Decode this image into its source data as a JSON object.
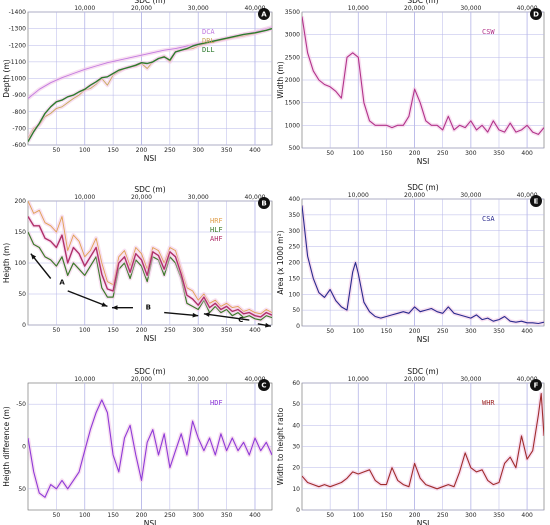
{
  "chart_data": [
    {
      "id": "A",
      "type": "line",
      "xlabel": "NSI",
      "ylabel": "Depth (m)",
      "x2label": "SDC (m)",
      "xlim": [
        0,
        430
      ],
      "ylim": [
        -1400,
        -600
      ],
      "y_step": 100,
      "y_reversed": true,
      "x2_ticks": [
        10000,
        20000,
        30000,
        40000
      ],
      "x2_tick_labels": [
        "10,000",
        "20,000",
        "30,000",
        "40,000"
      ],
      "series": [
        {
          "name": "DCA",
          "color": "#c27ae0",
          "width": 0.9,
          "x": [
            0,
            20,
            40,
            60,
            80,
            100,
            120,
            140,
            160,
            180,
            200,
            220,
            240,
            260,
            280,
            300,
            320,
            340,
            360,
            380,
            400,
            420,
            430
          ],
          "y": [
            -880,
            -935,
            -975,
            -1005,
            -1030,
            -1055,
            -1075,
            -1095,
            -1110,
            -1125,
            -1140,
            -1155,
            -1170,
            -1180,
            -1195,
            -1210,
            -1220,
            -1235,
            -1250,
            -1265,
            -1280,
            -1300,
            -1310
          ]
        },
        {
          "name": "DRL",
          "color": "#c8aa5a",
          "width": 0.9,
          "x": [
            0,
            10,
            20,
            30,
            40,
            50,
            60,
            70,
            80,
            90,
            100,
            110,
            120,
            130,
            140,
            150,
            160,
            170,
            180,
            190,
            200,
            210,
            220,
            230,
            240,
            250,
            260,
            270,
            280,
            290,
            300,
            320,
            340,
            360,
            380,
            400,
            420,
            430
          ],
          "y": [
            -640,
            -700,
            -720,
            -770,
            -790,
            -820,
            -830,
            -855,
            -880,
            -900,
            -930,
            -940,
            -965,
            -1000,
            -960,
            -1020,
            -1040,
            -1060,
            -1070,
            -1075,
            -1090,
            -1060,
            -1100,
            -1120,
            -1135,
            -1100,
            -1160,
            -1170,
            -1175,
            -1180,
            -1195,
            -1215,
            -1230,
            -1245,
            -1255,
            -1270,
            -1290,
            -1300
          ]
        },
        {
          "name": "DLL",
          "color": "#2d7a2d",
          "width": 1.4,
          "x": [
            0,
            10,
            20,
            30,
            40,
            50,
            60,
            70,
            80,
            90,
            100,
            110,
            120,
            130,
            140,
            150,
            160,
            170,
            180,
            190,
            200,
            210,
            220,
            230,
            240,
            250,
            260,
            270,
            280,
            290,
            300,
            320,
            340,
            360,
            380,
            400,
            420,
            430
          ],
          "y": [
            -620,
            -680,
            -730,
            -790,
            -830,
            -860,
            -870,
            -890,
            -900,
            -920,
            -935,
            -960,
            -980,
            -1005,
            -1010,
            -1030,
            -1050,
            -1060,
            -1070,
            -1080,
            -1095,
            -1090,
            -1100,
            -1120,
            -1130,
            -1110,
            -1160,
            -1170,
            -1180,
            -1195,
            -1205,
            -1220,
            -1235,
            -1250,
            -1265,
            -1275,
            -1290,
            -1300
          ]
        }
      ]
    },
    {
      "id": "B",
      "type": "line",
      "xlabel": "NSI",
      "ylabel": "Heigth (m)",
      "x2label": "SDC (m)",
      "xlim": [
        0,
        430
      ],
      "ylim": [
        0,
        200
      ],
      "y_step": 50,
      "y_reversed": false,
      "x2_ticks": [
        10000,
        20000,
        30000,
        40000
      ],
      "x2_tick_labels": [
        "10,000",
        "20,000",
        "30,000",
        "40,000"
      ],
      "series": [
        {
          "name": "HRF",
          "color": "#e0a050",
          "width": 0.9,
          "x": [
            0,
            10,
            20,
            30,
            40,
            50,
            60,
            70,
            80,
            90,
            100,
            110,
            120,
            130,
            140,
            150,
            160,
            170,
            180,
            190,
            200,
            210,
            220,
            230,
            240,
            250,
            260,
            270,
            280,
            290,
            300,
            310,
            320,
            330,
            340,
            350,
            360,
            370,
            380,
            390,
            400,
            410,
            420,
            430
          ],
          "y": [
            200,
            180,
            185,
            165,
            160,
            150,
            175,
            120,
            145,
            135,
            110,
            120,
            140,
            100,
            70,
            65,
            110,
            120,
            95,
            125,
            115,
            90,
            125,
            120,
            100,
            125,
            120,
            90,
            60,
            55,
            40,
            50,
            35,
            40,
            30,
            35,
            28,
            30,
            22,
            25,
            20,
            18,
            25,
            20
          ]
        },
        {
          "name": "HLF",
          "color": "#3c7a2a",
          "width": 1.2,
          "x": [
            0,
            10,
            20,
            30,
            40,
            50,
            60,
            70,
            80,
            90,
            100,
            110,
            120,
            130,
            140,
            150,
            160,
            170,
            180,
            190,
            200,
            210,
            220,
            230,
            240,
            250,
            260,
            270,
            280,
            290,
            300,
            310,
            320,
            330,
            340,
            350,
            360,
            370,
            380,
            390,
            400,
            410,
            420,
            430
          ],
          "y": [
            150,
            130,
            125,
            110,
            105,
            95,
            110,
            80,
            100,
            90,
            80,
            95,
            110,
            60,
            45,
            45,
            90,
            100,
            75,
            105,
            95,
            70,
            110,
            105,
            80,
            110,
            100,
            75,
            35,
            30,
            25,
            40,
            20,
            30,
            20,
            25,
            15,
            20,
            12,
            15,
            10,
            8,
            15,
            12
          ]
        },
        {
          "name": "AHF",
          "color": "#b0306a",
          "width": 1.4,
          "x": [
            0,
            10,
            20,
            30,
            40,
            50,
            60,
            70,
            80,
            90,
            100,
            110,
            120,
            130,
            140,
            150,
            160,
            170,
            180,
            190,
            200,
            210,
            220,
            230,
            240,
            250,
            260,
            270,
            280,
            290,
            300,
            310,
            320,
            330,
            340,
            350,
            360,
            370,
            380,
            390,
            400,
            410,
            420,
            430
          ],
          "y": [
            175,
            160,
            160,
            140,
            135,
            125,
            145,
            100,
            125,
            115,
            95,
            110,
            125,
            82,
            58,
            55,
            100,
            110,
            85,
            115,
            105,
            80,
            118,
            112,
            90,
            118,
            110,
            82,
            48,
            42,
            32,
            45,
            28,
            35,
            25,
            30,
            22,
            25,
            18,
            20,
            15,
            13,
            20,
            16
          ]
        }
      ]
    },
    {
      "id": "C",
      "type": "line",
      "xlabel": "NSI",
      "ylabel": "Heigth difference (m)",
      "x2label": "SDC (m)",
      "xlim": [
        0,
        430
      ],
      "ylim": [
        -75,
        75
      ],
      "y_ticks": [
        -50,
        0,
        50
      ],
      "y_reversed": true,
      "x2_ticks": [
        10000,
        20000,
        30000,
        40000
      ],
      "x2_tick_labels": [
        "10,000",
        "20,000",
        "30,000",
        "40,000"
      ],
      "series": [
        {
          "name": "HDF",
          "color": "#8e3ad8",
          "width": 1.1,
          "x": [
            0,
            10,
            20,
            30,
            40,
            50,
            60,
            70,
            80,
            90,
            100,
            110,
            120,
            130,
            140,
            150,
            160,
            170,
            180,
            190,
            200,
            210,
            220,
            230,
            240,
            250,
            260,
            270,
            280,
            290,
            300,
            310,
            320,
            330,
            340,
            350,
            360,
            370,
            380,
            390,
            400,
            410,
            420,
            430
          ],
          "y": [
            -10,
            30,
            55,
            60,
            45,
            50,
            40,
            50,
            40,
            30,
            5,
            -20,
            -40,
            -55,
            -40,
            10,
            30,
            -10,
            -25,
            10,
            40,
            -5,
            -20,
            10,
            -15,
            25,
            5,
            -15,
            10,
            -30,
            -10,
            5,
            -10,
            10,
            -15,
            5,
            -10,
            5,
            -5,
            10,
            -10,
            5,
            -5,
            10
          ]
        }
      ]
    },
    {
      "id": "D",
      "type": "line",
      "xlabel": "NSI",
      "ylabel": "Width (m)",
      "x2label": "SDC (m)",
      "xlim": [
        0,
        430
      ],
      "ylim": [
        500,
        3500
      ],
      "y_step": 500,
      "y_reversed": false,
      "x2_ticks": [
        10000,
        20000,
        30000,
        40000
      ],
      "x2_tick_labels": [
        "10,000",
        "20,000",
        "30,000",
        "40,000"
      ],
      "series": [
        {
          "name": "CSW",
          "color": "#b2338a",
          "width": 1.1,
          "x": [
            0,
            10,
            20,
            30,
            40,
            50,
            60,
            70,
            80,
            90,
            100,
            110,
            120,
            130,
            140,
            150,
            160,
            170,
            180,
            190,
            200,
            210,
            220,
            230,
            240,
            250,
            260,
            270,
            280,
            290,
            300,
            310,
            320,
            330,
            340,
            350,
            360,
            370,
            380,
            390,
            400,
            410,
            420,
            430
          ],
          "y": [
            3400,
            2600,
            2200,
            2000,
            1900,
            1850,
            1750,
            1600,
            2500,
            2600,
            2500,
            1500,
            1100,
            1000,
            1000,
            1000,
            950,
            1000,
            1000,
            1200,
            1800,
            1500,
            1100,
            1000,
            1000,
            900,
            1200,
            900,
            1000,
            950,
            1100,
            900,
            1000,
            850,
            1100,
            900,
            850,
            1050,
            850,
            900,
            1000,
            850,
            800,
            950
          ]
        }
      ]
    },
    {
      "id": "E",
      "type": "line",
      "xlabel": "NSI",
      "ylabel": "Area (x 1000 m²)",
      "x2label": "SDC (m)",
      "xlim": [
        0,
        430
      ],
      "ylim": [
        0,
        400
      ],
      "y_step": 50,
      "y_reversed": false,
      "x2_ticks": [
        10000,
        20000,
        30000,
        40000
      ],
      "x2_tick_labels": [
        "10,000",
        "20,000",
        "30,000",
        "40,000"
      ],
      "series": [
        {
          "name": "CSA",
          "color": "#2a2a8e",
          "width": 1.1,
          "x": [
            0,
            5,
            10,
            20,
            30,
            40,
            50,
            60,
            70,
            80,
            90,
            95,
            100,
            110,
            120,
            130,
            140,
            150,
            160,
            170,
            180,
            190,
            200,
            210,
            220,
            230,
            240,
            250,
            260,
            270,
            280,
            290,
            300,
            310,
            320,
            330,
            340,
            350,
            360,
            370,
            380,
            390,
            400,
            410,
            420,
            430
          ],
          "y": [
            380,
            300,
            220,
            150,
            105,
            90,
            115,
            80,
            60,
            50,
            170,
            200,
            165,
            75,
            45,
            30,
            25,
            30,
            35,
            40,
            45,
            40,
            60,
            45,
            50,
            55,
            45,
            40,
            60,
            40,
            35,
            30,
            25,
            35,
            20,
            25,
            15,
            20,
            30,
            15,
            12,
            15,
            10,
            10,
            8,
            12
          ]
        }
      ]
    },
    {
      "id": "F",
      "type": "line",
      "xlabel": "NSI",
      "ylabel": "Width to height ratio",
      "x2label": "SDC (m)",
      "xlim": [
        0,
        430
      ],
      "ylim": [
        0,
        60
      ],
      "y_step": 10,
      "y_reversed": false,
      "x2_ticks": [
        10000,
        20000,
        30000,
        40000
      ],
      "x2_tick_labels": [
        "10,000",
        "20,000",
        "30,000",
        "40,000"
      ],
      "series": [
        {
          "name": "WHR",
          "color": "#a02c2c",
          "width": 1.1,
          "x": [
            0,
            10,
            20,
            30,
            40,
            50,
            60,
            70,
            80,
            90,
            100,
            110,
            120,
            130,
            140,
            150,
            160,
            170,
            180,
            190,
            200,
            210,
            220,
            230,
            240,
            250,
            260,
            270,
            280,
            290,
            300,
            310,
            320,
            330,
            340,
            350,
            360,
            370,
            380,
            390,
            400,
            410,
            420,
            425,
            430
          ],
          "y": [
            16,
            13,
            12,
            11,
            12,
            11,
            12,
            13,
            15,
            18,
            17,
            18,
            19,
            14,
            12,
            12,
            20,
            14,
            12,
            11,
            22,
            15,
            12,
            11,
            10,
            11,
            12,
            11,
            18,
            27,
            20,
            18,
            19,
            14,
            12,
            13,
            22,
            25,
            20,
            35,
            24,
            28,
            45,
            55,
            35
          ]
        }
      ]
    }
  ],
  "panels": {
    "A": {
      "letter": "A",
      "legend": [
        "DCA",
        "DRL",
        "DLL"
      ]
    },
    "B": {
      "letter": "B",
      "legend": [
        "HRF",
        "HLF",
        "AHF"
      ],
      "annotations": [
        "A",
        "B",
        "C"
      ]
    },
    "C": {
      "letter": "C",
      "legend": [
        "HDF"
      ]
    },
    "D": {
      "letter": "D",
      "legend": [
        "CSW"
      ]
    },
    "E": {
      "letter": "E",
      "legend": [
        "CSA"
      ]
    },
    "F": {
      "letter": "F",
      "legend": [
        "WHR"
      ]
    }
  },
  "colors": {
    "grid": "#b7b7e8",
    "badge": "#111111"
  }
}
